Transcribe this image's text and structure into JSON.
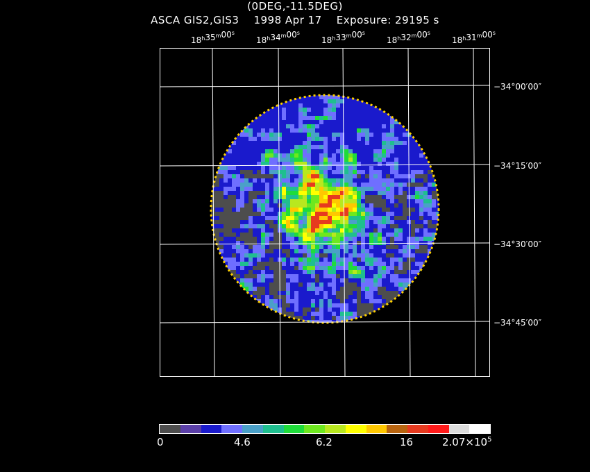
{
  "header": {
    "line1": "(0DEG,-11.5DEG)",
    "instrument": "ASCA GIS2,GIS3",
    "date": "1998 Apr 17",
    "exposure": "Exposure: 29195 s"
  },
  "axes": {
    "ra_ticks": [
      {
        "h": "18",
        "m": "35",
        "s": "00"
      },
      {
        "h": "18",
        "m": "34",
        "s": "00"
      },
      {
        "h": "18",
        "m": "33",
        "s": "00"
      },
      {
        "h": "18",
        "m": "32",
        "s": "00"
      },
      {
        "h": "18",
        "m": "31",
        "s": "00"
      }
    ],
    "ra_unit_hour": "h",
    "ra_unit_min": "m",
    "ra_unit_sec": "s",
    "dec_ticks": [
      "−34°00′00″",
      "−34°15′00″",
      "−34°30′00″",
      "−34°45′00″"
    ]
  },
  "image": {
    "description_color_background": "#000000",
    "field_shape": "circle"
  },
  "colorbar": {
    "colors": [
      "#4d4d4d",
      "#5b3fa8",
      "#1a1acc",
      "#6f6fff",
      "#4aa0c8",
      "#1fbf8f",
      "#1fdc3a",
      "#6ee81f",
      "#b8e81f",
      "#ffff00",
      "#ffc800",
      "#b8640f",
      "#e63a1f",
      "#ff1a1a",
      "#dcdcdc",
      "#ffffff"
    ],
    "labels": [
      "0",
      "4.6",
      "6.2",
      "16"
    ],
    "max_label_base": "2.07×10",
    "max_label_exp": "5"
  }
}
